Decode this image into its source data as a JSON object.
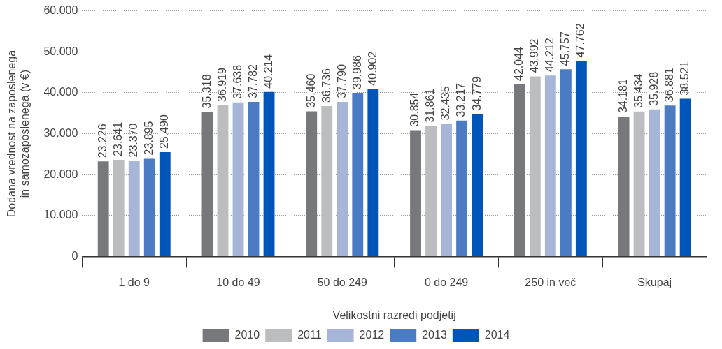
{
  "chart_data": {
    "type": "bar",
    "xlabel": "Velikostni razredi podjetij",
    "ylabel": "Dodana vrednost na zaposlenega in samozaposlenega (v €)",
    "categories": [
      "1 do 9",
      "10 do 49",
      "50 do 249",
      "0 do 249",
      "250 in več",
      "Skupaj"
    ],
    "series": [
      {
        "name": "2010",
        "color": "#77787c",
        "values": [
          23226,
          35318,
          35460,
          30854,
          42044,
          34181
        ],
        "value_labels": [
          "23.226",
          "35.318",
          "35.460",
          "30.854",
          "42.044",
          "34.181"
        ]
      },
      {
        "name": "2011",
        "color": "#bcbdbf",
        "values": [
          23641,
          36919,
          36736,
          31861,
          43992,
          35434
        ],
        "value_labels": [
          "23.641",
          "36.919",
          "36.736",
          "31.861",
          "43.992",
          "35.434"
        ]
      },
      {
        "name": "2012",
        "color": "#a7b6d8",
        "values": [
          23370,
          37638,
          37790,
          32435,
          44212,
          35928
        ],
        "value_labels": [
          "23.370",
          "37.638",
          "37.790",
          "32.435",
          "44.212",
          "35.928"
        ]
      },
      {
        "name": "2013",
        "color": "#4b7bc3",
        "values": [
          23895,
          37782,
          39986,
          33217,
          45757,
          36881
        ],
        "value_labels": [
          "23.895",
          "37.782",
          "39.986",
          "33.217",
          "45.757",
          "36.881"
        ]
      },
      {
        "name": "2014",
        "color": "#0055b8",
        "values": [
          25490,
          40214,
          40902,
          34779,
          47762,
          38521
        ],
        "value_labels": [
          "25.490",
          "40.214",
          "40.902",
          "34.779",
          "47.762",
          "38.521"
        ]
      }
    ],
    "ylim": [
      0,
      60000
    ],
    "yticks": [
      0,
      {
        "value": 10000,
        "label": "10.000"
      },
      {
        "value": 20000,
        "label": "20.000"
      },
      {
        "value": 30000,
        "label": "30.000"
      },
      {
        "value": 40000,
        "label": "40.000"
      },
      {
        "value": 50000,
        "label": "50.000"
      },
      {
        "value": 60000,
        "label": "60.000"
      }
    ],
    "grid": "y",
    "legend": "bottom"
  }
}
